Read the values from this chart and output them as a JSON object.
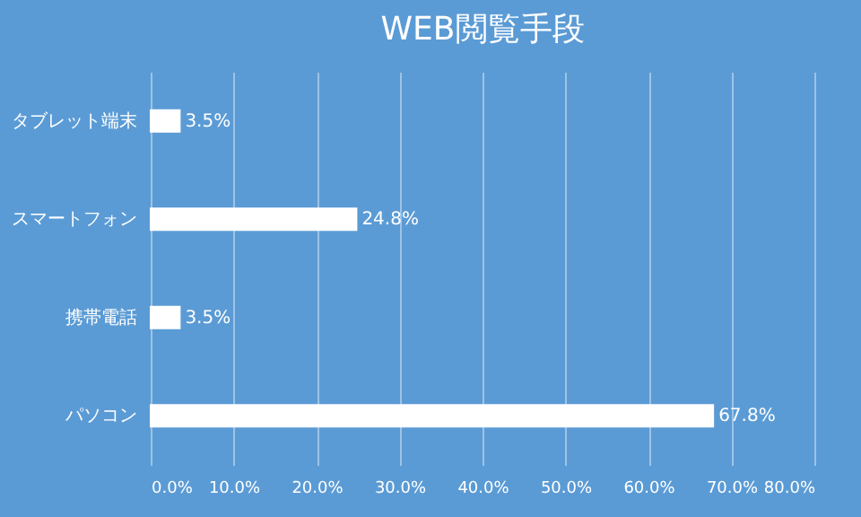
{
  "chart_data": {
    "type": "bar",
    "title": "WEB閲覧手段",
    "orientation": "horizontal",
    "categories": [
      "タブレット端末",
      "スマートフォン",
      "携帯電話",
      "パソコン"
    ],
    "values": [
      3.5,
      24.8,
      3.5,
      67.8
    ],
    "color": "#ffffff",
    "value_labels": [
      "3.5%",
      "24.8%",
      "3.5%",
      "67.8%"
    ],
    "xlim": [
      0,
      80
    ],
    "xticks": [
      {
        "value": 0,
        "label": "0.0%"
      },
      {
        "value": 10,
        "label": "10.0%"
      },
      {
        "value": 20,
        "label": "20.0%"
      },
      {
        "value": 30,
        "label": "30.0%"
      },
      {
        "value": 40,
        "label": "40.0%"
      },
      {
        "value": 50,
        "label": "50.0%"
      },
      {
        "value": 60,
        "label": "60.0%"
      },
      {
        "value": 70,
        "label": "70.0%"
      },
      {
        "value": 80,
        "label": "80.0%"
      }
    ],
    "grid": "x"
  }
}
